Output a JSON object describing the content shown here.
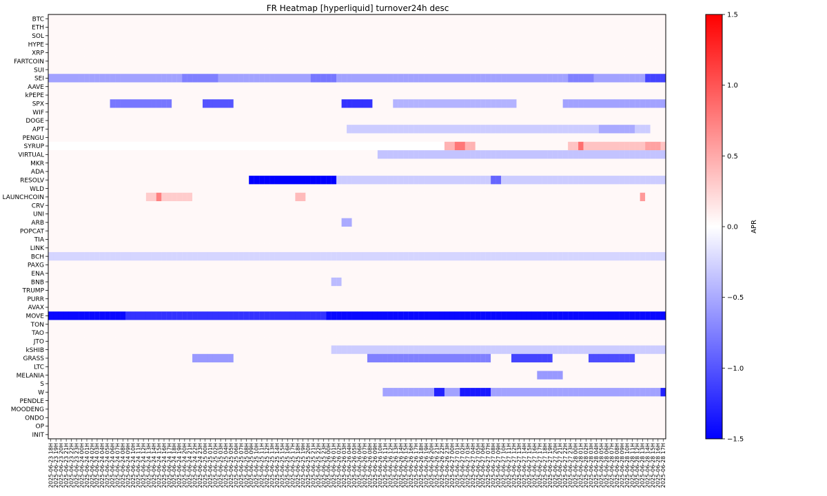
{
  "chart_data": {
    "type": "heatmap",
    "title": "FR Heatmap [hyperliquid] turnover24h desc",
    "ylabel": "",
    "xlabel": "",
    "colorbar": {
      "label": "APR",
      "range": [
        -1.5,
        1.5
      ],
      "ticks": [
        1.5,
        1.0,
        0.5,
        0.0,
        -0.5,
        -1.0,
        -1.5
      ],
      "tick_labels": [
        "1.5",
        "1.0",
        "0.5",
        "0.0",
        "−0.5",
        "−1.0",
        "−1.5"
      ],
      "colormap": "bwr",
      "low_color": "#0000ff",
      "mid_color": "#ffffff",
      "high_color": "#ff0000"
    },
    "y_categories": [
      "BTC",
      "ETH",
      "SOL",
      "HYPE",
      "XRP",
      "FARTCOIN",
      "SUI",
      "SEI",
      "AAVE",
      "kPEPE",
      "SPX",
      "WIF",
      "DOGE",
      "APT",
      "PENGU",
      "SYRUP",
      "VIRTUAL",
      "MKR",
      "ADA",
      "RESOLV",
      "WLD",
      "LAUNCHCOIN",
      "CRV",
      "UNI",
      "ARB",
      "POPCAT",
      "TIA",
      "LINK",
      "BCH",
      "PAXG",
      "ENA",
      "BNB",
      "TRUMP",
      "PURR",
      "AVAX",
      "MOVE",
      "TON",
      "TAO",
      "JTO",
      "kSHIB",
      "GRASS",
      "LTC",
      "MELANIA",
      "S",
      "W",
      "PENDLE",
      "MOODENG",
      "ONDO",
      "OP",
      "INIT"
    ],
    "x_start": "2025-06-23 18H",
    "x_end": "2025-06-28 17H",
    "x_step_hours": 1,
    "x_count": 120,
    "baseline_value": 0.04,
    "segments": [
      {
        "row": "SEI",
        "from": "2025-06-23 18H",
        "to": "2025-06-28 17H",
        "value": -0.55
      },
      {
        "row": "SEI",
        "from": "2025-06-24 20H",
        "to": "2025-06-25 02H",
        "value": -0.75
      },
      {
        "row": "SEI",
        "from": "2025-06-25 21H",
        "to": "2025-06-26 01H",
        "value": -0.8
      },
      {
        "row": "SEI",
        "from": "2025-06-27 23H",
        "to": "2025-06-28 03H",
        "value": -0.75
      },
      {
        "row": "SEI",
        "from": "2025-06-28 14H",
        "to": "2025-06-28 17H",
        "value": -1.1
      },
      {
        "row": "SPX",
        "from": "2025-06-24 06H",
        "to": "2025-06-24 17H",
        "value": -0.8
      },
      {
        "row": "SPX",
        "from": "2025-06-25 00H",
        "to": "2025-06-25 05H",
        "value": -1.0
      },
      {
        "row": "SPX",
        "from": "2025-06-26 03H",
        "to": "2025-06-26 08H",
        "value": -1.2
      },
      {
        "row": "SPX",
        "from": "2025-06-26 13H",
        "to": "2025-06-27 12H",
        "value": -0.45
      },
      {
        "row": "SPX",
        "from": "2025-06-27 22H",
        "to": "2025-06-28 17H",
        "value": -0.55
      },
      {
        "row": "APT",
        "from": "2025-06-26 04H",
        "to": "2025-06-28 14H",
        "value": -0.3
      },
      {
        "row": "APT",
        "from": "2025-06-28 05H",
        "to": "2025-06-28 11H",
        "value": -0.5
      },
      {
        "row": "SYRUP",
        "from": "2025-06-23 18H",
        "to": "2025-06-26 22H",
        "value": 0.0
      },
      {
        "row": "SYRUP",
        "from": "2025-06-26 23H",
        "to": "2025-06-27 04H",
        "value": 0.45
      },
      {
        "row": "SYRUP",
        "from": "2025-06-27 01H",
        "to": "2025-06-27 02H",
        "value": 0.8
      },
      {
        "row": "SYRUP",
        "from": "2025-06-27 23H",
        "to": "2025-06-28 17H",
        "value": 0.35
      },
      {
        "row": "SYRUP",
        "from": "2025-06-28 01H",
        "to": "2025-06-28 01H",
        "value": 0.85
      },
      {
        "row": "SYRUP",
        "from": "2025-06-28 14H",
        "to": "2025-06-28 16H",
        "value": 0.55
      },
      {
        "row": "VIRTUAL",
        "from": "2025-06-26 10H",
        "to": "2025-06-28 17H",
        "value": -0.35
      },
      {
        "row": "RESOLV",
        "from": "2025-06-25 09H",
        "to": "2025-06-26 01H",
        "value": -1.5
      },
      {
        "row": "RESOLV",
        "from": "2025-06-26 02H",
        "to": "2025-06-28 17H",
        "value": -0.3
      },
      {
        "row": "RESOLV",
        "from": "2025-06-27 08H",
        "to": "2025-06-27 09H",
        "value": -0.9
      },
      {
        "row": "LAUNCHCOIN",
        "from": "2025-06-24 13H",
        "to": "2025-06-24 21H",
        "value": 0.3
      },
      {
        "row": "LAUNCHCOIN",
        "from": "2025-06-24 15H",
        "to": "2025-06-24 15H",
        "value": 0.75
      },
      {
        "row": "LAUNCHCOIN",
        "from": "2025-06-25 18H",
        "to": "2025-06-25 19H",
        "value": 0.4
      },
      {
        "row": "LAUNCHCOIN",
        "from": "2025-06-28 13H",
        "to": "2025-06-28 13H",
        "value": 0.6
      },
      {
        "row": "ARB",
        "from": "2025-06-26 03H",
        "to": "2025-06-26 04H",
        "value": -0.5
      },
      {
        "row": "BCH",
        "from": "2025-06-23 18H",
        "to": "2025-06-28 17H",
        "value": -0.25
      },
      {
        "row": "BNB",
        "from": "2025-06-26 01H",
        "to": "2025-06-26 02H",
        "value": -0.4
      },
      {
        "row": "MOVE",
        "from": "2025-06-23 18H",
        "to": "2025-06-28 17H",
        "value": -1.45
      },
      {
        "row": "MOVE",
        "from": "2025-06-24 09H",
        "to": "2025-06-25 23H",
        "value": -1.2
      },
      {
        "row": "kSHIB",
        "from": "2025-06-26 01H",
        "to": "2025-06-28 17H",
        "value": -0.3
      },
      {
        "row": "GRASS",
        "from": "2025-06-24 22H",
        "to": "2025-06-25 05H",
        "value": -0.6
      },
      {
        "row": "GRASS",
        "from": "2025-06-26 08H",
        "to": "2025-06-27 07H",
        "value": -0.75
      },
      {
        "row": "GRASS",
        "from": "2025-06-27 12H",
        "to": "2025-06-27 19H",
        "value": -1.1
      },
      {
        "row": "GRASS",
        "from": "2025-06-28 03H",
        "to": "2025-06-28 11H",
        "value": -1.05
      },
      {
        "row": "MELANIA",
        "from": "2025-06-27 17H",
        "to": "2025-06-27 21H",
        "value": -0.6
      },
      {
        "row": "W",
        "from": "2025-06-26 11H",
        "to": "2025-06-28 17H",
        "value": -0.55
      },
      {
        "row": "W",
        "from": "2025-06-27 02H",
        "to": "2025-06-27 07H",
        "value": -1.35
      },
      {
        "row": "W",
        "from": "2025-06-26 21H",
        "to": "2025-06-26 22H",
        "value": -1.3
      },
      {
        "row": "W",
        "from": "2025-06-28 17H",
        "to": "2025-06-28 17H",
        "value": -1.3
      }
    ]
  }
}
